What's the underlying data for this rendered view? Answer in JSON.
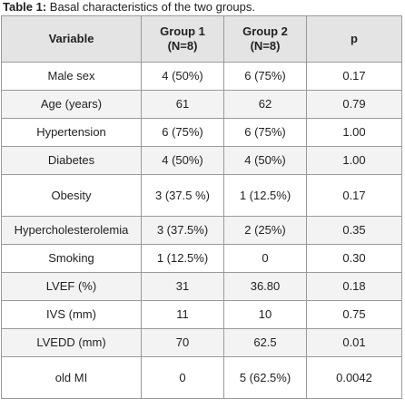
{
  "caption": {
    "lead": "Table 1:",
    "text": " Basal characteristics of the two groups."
  },
  "headers": {
    "variable": "Variable",
    "group1": "Group 1 (N=8)",
    "group2": "Group 2 (N=8)",
    "p": "p"
  },
  "rows": [
    {
      "variable": "Male sex",
      "group1": "4 (50%)",
      "group2": "6 (75%)",
      "p": "0.17"
    },
    {
      "variable": "Age (years)",
      "group1": "61",
      "group2": "62",
      "p": "0.79"
    },
    {
      "variable": "Hypertension",
      "group1": "6 (75%)",
      "group2": "6 (75%)",
      "p": "1.00"
    },
    {
      "variable": "Diabetes",
      "group1": "4 (50%)",
      "group2": "4 (50%)",
      "p": "1.00"
    },
    {
      "variable": "Obesity",
      "group1": "3 (37.5 %)",
      "group2": "1 (12.5%)",
      "p": "0.17"
    },
    {
      "variable": "Hypercholesterolemia",
      "group1": "3 (37.5%)",
      "group2": "2 (25%)",
      "p": "0.35"
    },
    {
      "variable": "Smoking",
      "group1": "1 (12.5%)",
      "group2": "0",
      "p": "0.30"
    },
    {
      "variable": "LVEF (%)",
      "group1": "31",
      "group2": "36.80",
      "p": "0.18"
    },
    {
      "variable": "IVS (mm)",
      "group1": "11",
      "group2": "10",
      "p": "0.75"
    },
    {
      "variable": "LVEDD (mm)",
      "group1": "70",
      "group2": "62.5",
      "p": "0.01"
    },
    {
      "variable": "old MI",
      "group1": "0",
      "group2": "5 (62.5%)",
      "p": "0.0042"
    }
  ]
}
